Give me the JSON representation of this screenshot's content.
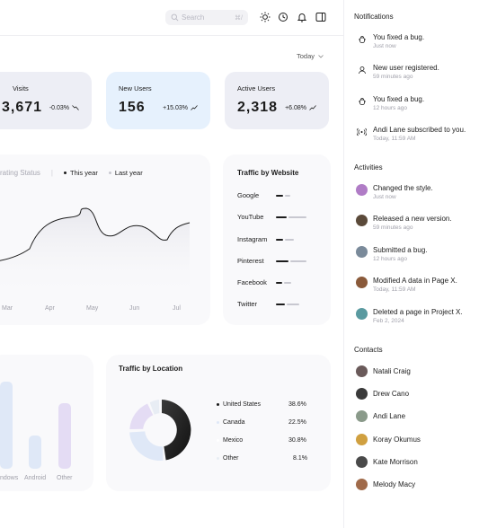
{
  "search": {
    "placeholder": "Search",
    "shortcut": "⌘/"
  },
  "period": {
    "label": "Today"
  },
  "stats": [
    {
      "label": "Visits",
      "value": "3,671",
      "change": "-0.03%",
      "bg": "#edeef5"
    },
    {
      "label": "New Users",
      "value": "156",
      "change": "+15.03%",
      "bg": "#e6f1fd"
    },
    {
      "label": "Active Users",
      "value": "2,318",
      "change": "+6.08%",
      "bg": "#edeef5"
    }
  ],
  "operating": {
    "title": "rating Status",
    "legend_this": "This year",
    "legend_last": "Last year",
    "months": [
      "Mar",
      "Apr",
      "May",
      "Jun",
      "Jul"
    ]
  },
  "website": {
    "title": "Traffic by Website",
    "sites": [
      "Google",
      "YouTube",
      "Instagram",
      "Pinterest",
      "Facebook",
      "Twitter"
    ]
  },
  "device": {
    "labels": [
      "ndows",
      "Android",
      "Other"
    ]
  },
  "location": {
    "title": "Traffic by Location",
    "rows": [
      {
        "name": "United States",
        "pct": "38.6%"
      },
      {
        "name": "Canada",
        "pct": "22.5%"
      },
      {
        "name": "Mexico",
        "pct": "30.8%"
      },
      {
        "name": "Other",
        "pct": "8.1%"
      }
    ]
  },
  "notifications": {
    "title": "Notifications",
    "items": [
      {
        "icon": "bug-icon",
        "text": "You fixed a bug.",
        "time": "Just now"
      },
      {
        "icon": "user-icon",
        "text": "New user registered.",
        "time": "59 minutes ago"
      },
      {
        "icon": "bug-icon",
        "text": "You fixed a bug.",
        "time": "12 hours ago"
      },
      {
        "icon": "broadcast-icon",
        "text": "Andi Lane subscribed to you.",
        "time": "Today, 11:59 AM"
      }
    ]
  },
  "activities": {
    "title": "Activities",
    "items": [
      {
        "text": "Changed the style.",
        "time": "Just now",
        "color": "#b07cc6"
      },
      {
        "text": "Released a new version.",
        "time": "59 minutes ago",
        "color": "#5b4a3a"
      },
      {
        "text": "Submitted a bug.",
        "time": "12 hours ago",
        "color": "#7a8a9a"
      },
      {
        "text": "Modified A data in Page X.",
        "time": "Today, 11:59 AM",
        "color": "#8a5a3a"
      },
      {
        "text": "Deleted a page in Project X.",
        "time": "Feb 2, 2024",
        "color": "#5a9aa0"
      }
    ]
  },
  "contacts": {
    "title": "Contacts",
    "items": [
      {
        "name": "Natali Craig",
        "color": "#6a5a5a"
      },
      {
        "name": "Drew Cano",
        "color": "#3a3a3a"
      },
      {
        "name": "Andi Lane",
        "color": "#8a9a8a"
      },
      {
        "name": "Koray Okumus",
        "color": "#d0a040"
      },
      {
        "name": "Kate Morrison",
        "color": "#4a4a4a"
      },
      {
        "name": "Melody Macy",
        "color": "#a06a4a"
      }
    ]
  }
}
